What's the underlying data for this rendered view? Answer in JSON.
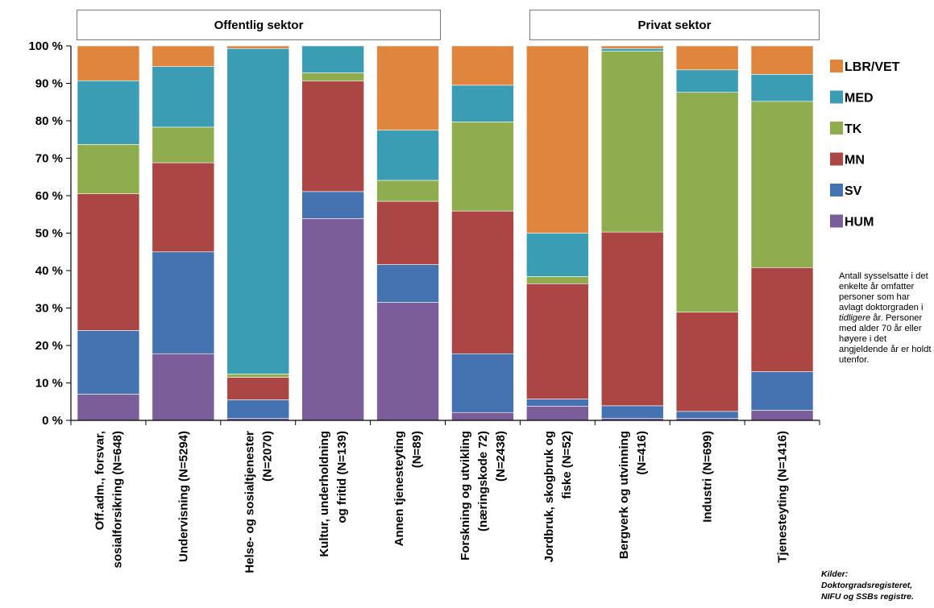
{
  "sectors": {
    "public": "Offentlig sektor",
    "private": "Privat sektor"
  },
  "note": {
    "part1": "Antall sysselsatte i det enkelte år omfatter personer som har avlagt doktorgraden i ",
    "emphasis": "tidligere",
    "part2": " år. Personer med alder 70 år eller høyere i det angjeldende år er holdt utenfor."
  },
  "source": {
    "line1": "Kilder:",
    "line2": "Doktorgradsregisteret,",
    "line3": "NIFU og SSBs registre."
  },
  "chart_data": {
    "type": "bar",
    "stacked": true,
    "normalized": true,
    "ylim": [
      0,
      100
    ],
    "yticks": [
      "0 %",
      "10 %",
      "20 %",
      "30 %",
      "40 %",
      "50 %",
      "60 %",
      "70 %",
      "80 %",
      "90 %",
      "100 %"
    ],
    "legend_position": "right",
    "categories": [
      [
        "Off.adm., forsvar,",
        "sosialforsikring (N=648)"
      ],
      [
        "Undervisning (N=5294)"
      ],
      [
        "Helse- og sosialtjenester",
        "(N=2070)"
      ],
      [
        "Kultur, underholdning",
        "og fritid (N=139)"
      ],
      [
        "Annen tjenesteyting",
        "(N=89)"
      ],
      [
        "Forskning og utvikling",
        "(næringskode 72)",
        "(N=2438)"
      ],
      [
        "Jordbruk, skogbruk og",
        "fiske (N=52)"
      ],
      [
        "Bergverk og utvinning",
        "(N=416)"
      ],
      [
        "Industri (N=699)"
      ],
      [
        "Tjenesteyting (N=1416)"
      ]
    ],
    "series": [
      {
        "name": "HUM",
        "color": "#7b5e99",
        "values": [
          7,
          17.8,
          0.5,
          53.9,
          31.5,
          2.1,
          3.8,
          0.5,
          0.5,
          2.7
        ]
      },
      {
        "name": "SV",
        "color": "#4573b2",
        "values": [
          17,
          27.2,
          5,
          7.2,
          10.1,
          15.7,
          1.9,
          3.4,
          1.9,
          10.3
        ]
      },
      {
        "name": "MN",
        "color": "#ab4644",
        "values": [
          36.5,
          23.8,
          6,
          29.5,
          16.9,
          38.1,
          30.8,
          46.4,
          26.5,
          27.8
        ]
      },
      {
        "name": "TK",
        "color": "#8fad4e",
        "values": [
          13.2,
          9.5,
          0.9,
          2.2,
          5.6,
          23.8,
          1.9,
          48.3,
          58.7,
          44.4
        ]
      },
      {
        "name": "MED",
        "color": "#3b9db3",
        "values": [
          17,
          16.2,
          86.9,
          7.2,
          13.4,
          9.8,
          11.6,
          0.7,
          6,
          7.2
        ]
      },
      {
        "name": "LBR/VET",
        "color": "#df853e",
        "values": [
          9.3,
          5.5,
          0.7,
          0,
          22.5,
          10.5,
          50,
          0.7,
          6.4,
          7.6
        ]
      }
    ]
  }
}
